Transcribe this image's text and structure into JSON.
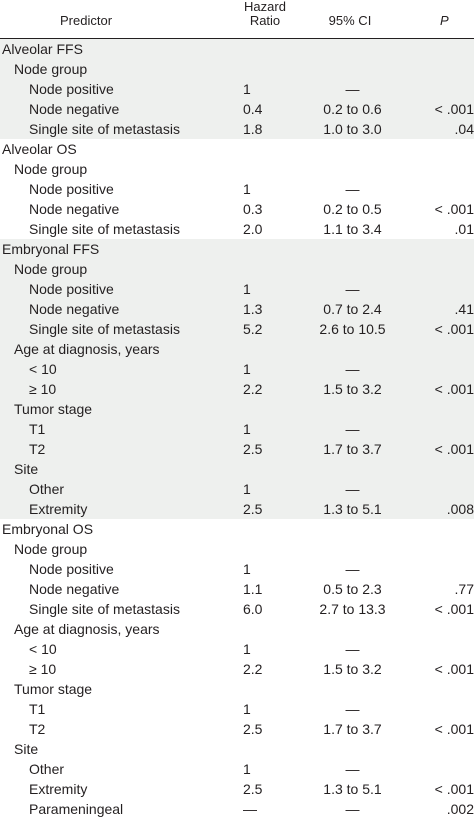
{
  "header": {
    "predictor": "Predictor",
    "hazard_ratio_line1": "Hazard",
    "hazard_ratio_line2": "Ratio",
    "ci": "95% CI",
    "p": "P"
  },
  "sections": [
    {
      "title": "Alveolar FFS",
      "shaded": true,
      "rows": [
        {
          "label": "Node group",
          "level": 1,
          "hr": "",
          "ci": "",
          "p": ""
        },
        {
          "label": "Node positive",
          "level": 2,
          "hr": "1",
          "ci": "—",
          "p": ""
        },
        {
          "label": "Node negative",
          "level": 2,
          "hr": "0.4",
          "ci": "0.2 to 0.6",
          "p": "< .001"
        },
        {
          "label": "Single site of metastasis",
          "level": 2,
          "hr": "1.8",
          "ci": "1.0 to 3.0",
          "p": ".04"
        }
      ]
    },
    {
      "title": "Alveolar OS",
      "shaded": false,
      "rows": [
        {
          "label": "Node group",
          "level": 1,
          "hr": "",
          "ci": "",
          "p": ""
        },
        {
          "label": "Node positive",
          "level": 2,
          "hr": "1",
          "ci": "—",
          "p": ""
        },
        {
          "label": "Node negative",
          "level": 2,
          "hr": "0.3",
          "ci": "0.2 to 0.5",
          "p": "< .001"
        },
        {
          "label": "Single site of metastasis",
          "level": 2,
          "hr": "2.0",
          "ci": "1.1 to 3.4",
          "p": ".01"
        }
      ]
    },
    {
      "title": "Embryonal FFS",
      "shaded": true,
      "rows": [
        {
          "label": "Node group",
          "level": 1,
          "hr": "",
          "ci": "",
          "p": ""
        },
        {
          "label": "Node positive",
          "level": 2,
          "hr": "1",
          "ci": "—",
          "p": ""
        },
        {
          "label": "Node negative",
          "level": 2,
          "hr": "1.3",
          "ci": "0.7 to 2.4",
          "p": ".41"
        },
        {
          "label": "Single site of metastasis",
          "level": 2,
          "hr": "5.2",
          "ci": "2.6 to 10.5",
          "p": "< .001"
        },
        {
          "label": "Age at diagnosis, years",
          "level": 1,
          "hr": "",
          "ci": "",
          "p": ""
        },
        {
          "label": "< 10",
          "level": 2,
          "hr": "1",
          "ci": "—",
          "p": ""
        },
        {
          "label": "≥ 10",
          "level": 2,
          "hr": "2.2",
          "ci": "1.5 to 3.2",
          "p": "< .001"
        },
        {
          "label": "Tumor stage",
          "level": 1,
          "hr": "",
          "ci": "",
          "p": ""
        },
        {
          "label": "T1",
          "level": 2,
          "hr": "1",
          "ci": "—",
          "p": ""
        },
        {
          "label": "T2",
          "level": 2,
          "hr": "2.5",
          "ci": "1.7 to 3.7",
          "p": "< .001"
        },
        {
          "label": "Site",
          "level": 1,
          "hr": "",
          "ci": "",
          "p": ""
        },
        {
          "label": "Other",
          "level": 2,
          "hr": "1",
          "ci": "—",
          "p": ""
        },
        {
          "label": "Extremity",
          "level": 2,
          "hr": "2.5",
          "ci": "1.3 to 5.1",
          "p": ".008"
        }
      ]
    },
    {
      "title": "Embryonal OS",
      "shaded": false,
      "rows": [
        {
          "label": "Node group",
          "level": 1,
          "hr": "",
          "ci": "",
          "p": ""
        },
        {
          "label": "Node positive",
          "level": 2,
          "hr": "1",
          "ci": "—",
          "p": ""
        },
        {
          "label": "Node negative",
          "level": 2,
          "hr": "1.1",
          "ci": "0.5 to 2.3",
          "p": ".77"
        },
        {
          "label": "Single site of metastasis",
          "level": 2,
          "hr": "6.0",
          "ci": "2.7 to 13.3",
          "p": "< .001"
        },
        {
          "label": "Age at diagnosis, years",
          "level": 1,
          "hr": "",
          "ci": "",
          "p": ""
        },
        {
          "label": "< 10",
          "level": 2,
          "hr": "1",
          "ci": "—",
          "p": ""
        },
        {
          "label": "≥ 10",
          "level": 2,
          "hr": "2.2",
          "ci": "1.5 to 3.2",
          "p": "< .001"
        },
        {
          "label": "Tumor stage",
          "level": 1,
          "hr": "",
          "ci": "",
          "p": ""
        },
        {
          "label": "T1",
          "level": 2,
          "hr": "1",
          "ci": "—",
          "p": ""
        },
        {
          "label": "T2",
          "level": 2,
          "hr": "2.5",
          "ci": "1.7 to 3.7",
          "p": "< .001"
        },
        {
          "label": "Site",
          "level": 1,
          "hr": "",
          "ci": "",
          "p": ""
        },
        {
          "label": "Other",
          "level": 2,
          "hr": "1",
          "ci": "—",
          "p": ""
        },
        {
          "label": "Extremity",
          "level": 2,
          "hr": "2.5",
          "ci": "1.3 to 5.1",
          "p": "< .001"
        },
        {
          "label": "Parameningeal",
          "level": 2,
          "hr": "—",
          "ci": "—",
          "p": ".002"
        }
      ]
    }
  ]
}
